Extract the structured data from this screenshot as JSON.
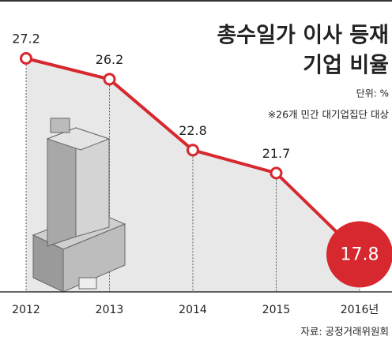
{
  "chart_data": {
    "type": "line",
    "title": [
      "총수일가 이사 등재",
      "기업 비율"
    ],
    "unit": "단위: %",
    "note": "※26개 민간 대기업집단 대상",
    "source": "자료: 공정거래위원회",
    "categories": [
      "2012",
      "2013",
      "2014",
      "2015",
      "2016년"
    ],
    "values": [
      27.2,
      26.2,
      22.8,
      21.7,
      17.8
    ],
    "color": "#d7282f",
    "ylim": [
      16,
      30
    ]
  }
}
